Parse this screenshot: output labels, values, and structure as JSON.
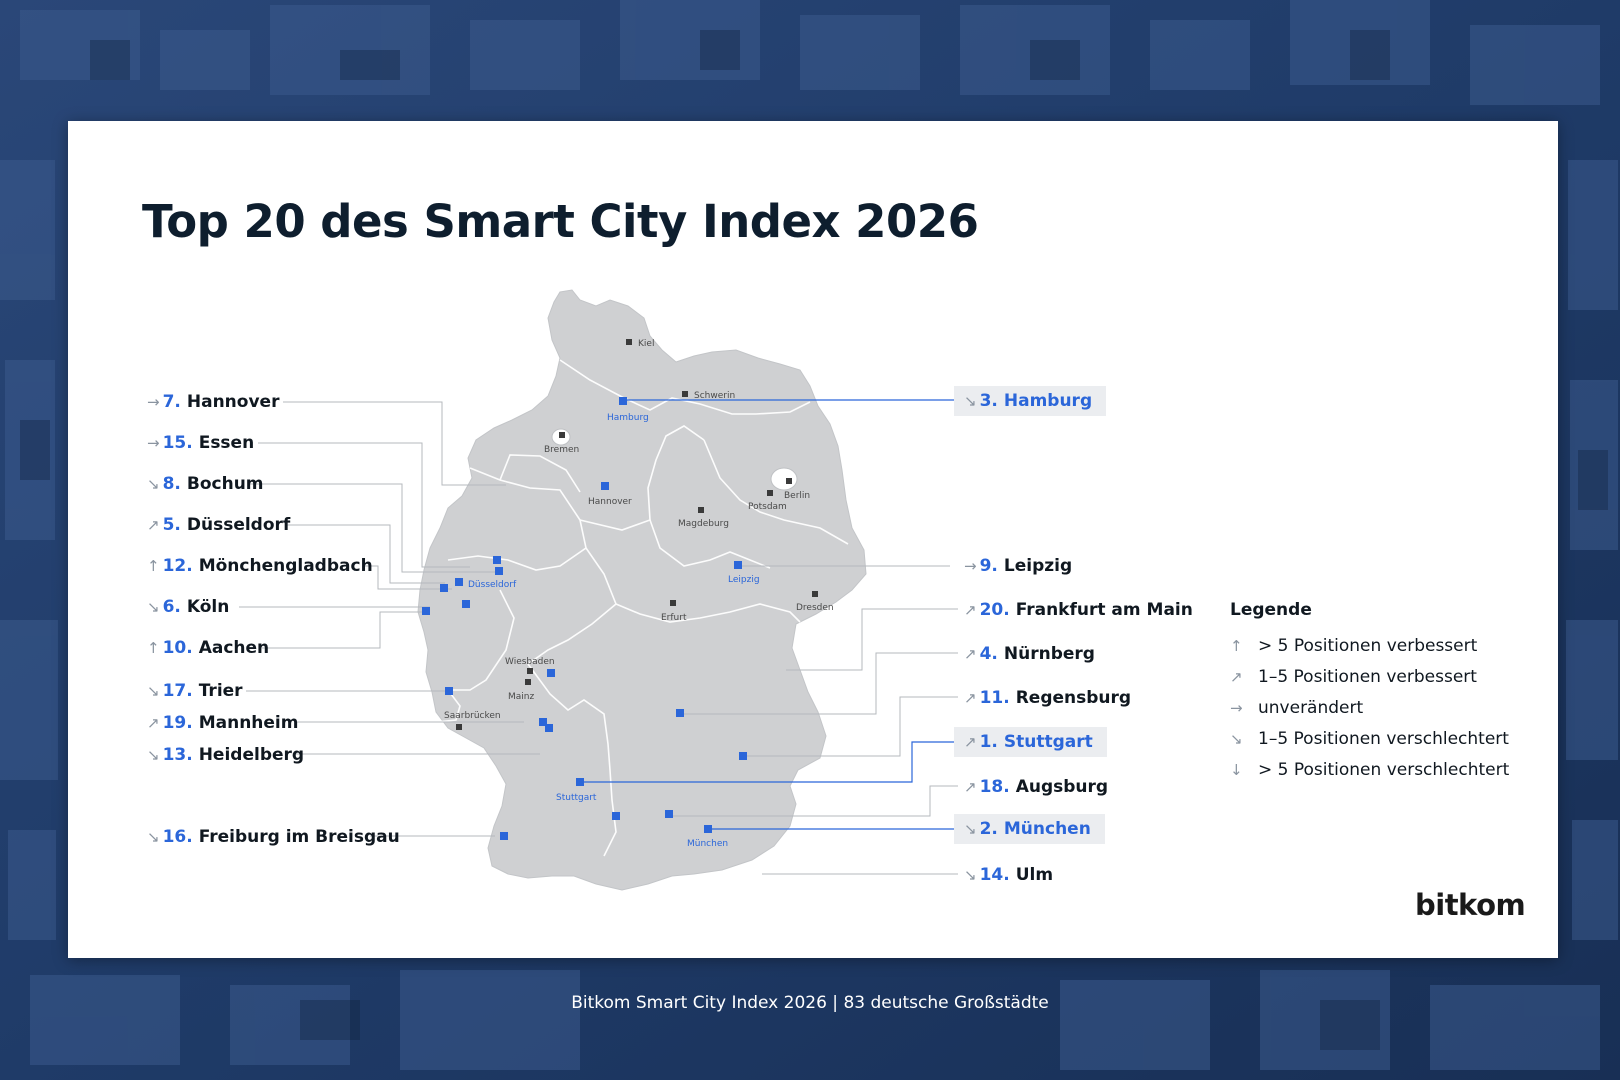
{
  "title": "Top 20 des Smart City Index 2026",
  "caption": "Bitkom Smart City Index 2026 | 83 deutsche Großstädte",
  "brand": "bitkom",
  "colors": {
    "accent_blue": "#2b66d9",
    "map_gray": "#cfd0d2",
    "highlight_bg": "#ebedf0",
    "background": "#1d3a66"
  },
  "legend": {
    "title": "Legende",
    "items": [
      {
        "icon": "arrow-up-icon",
        "symbol": "↑",
        "label": "> 5 Positionen verbessert"
      },
      {
        "icon": "arrow-up-right-icon",
        "symbol": "↗",
        "label": "1–5 Positionen verbessert"
      },
      {
        "icon": "arrow-right-icon",
        "symbol": "→",
        "label": "unverändert"
      },
      {
        "icon": "arrow-down-right-icon",
        "symbol": "↘",
        "label": "1–5 Positionen verschlechtert"
      },
      {
        "icon": "arrow-down-icon",
        "symbol": "↓",
        "label": "> 5 Positionen verschlechtert"
      }
    ]
  },
  "rankings_left": [
    {
      "rank": "7.",
      "name": "Hannover",
      "trend": "→"
    },
    {
      "rank": "15.",
      "name": "Essen",
      "trend": "→"
    },
    {
      "rank": "8.",
      "name": "Bochum",
      "trend": "↘"
    },
    {
      "rank": "5.",
      "name": "Düsseldorf",
      "trend": "↗"
    },
    {
      "rank": "12.",
      "name": "Mönchengladbach",
      "trend": "↑"
    },
    {
      "rank": "6.",
      "name": "Köln",
      "trend": "↘"
    },
    {
      "rank": "10.",
      "name": "Aachen",
      "trend": "↑"
    },
    {
      "rank": "17.",
      "name": "Trier",
      "trend": "↘"
    },
    {
      "rank": "19.",
      "name": "Mannheim",
      "trend": "↗"
    },
    {
      "rank": "13.",
      "name": "Heidelberg",
      "trend": "↘"
    },
    {
      "rank": "16.",
      "name": "Freiburg im Breisgau",
      "trend": "↘"
    }
  ],
  "rankings_right": [
    {
      "rank": "3.",
      "name": "Hamburg",
      "trend": "↘",
      "top3": true
    },
    {
      "rank": "9.",
      "name": "Leipzig",
      "trend": "→",
      "top3": false
    },
    {
      "rank": "20.",
      "name": "Frankfurt am Main",
      "trend": "↗",
      "top3": false
    },
    {
      "rank": "4.",
      "name": "Nürnberg",
      "trend": "↗",
      "top3": false
    },
    {
      "rank": "11.",
      "name": "Regensburg",
      "trend": "↗",
      "top3": false
    },
    {
      "rank": "1.",
      "name": "Stuttgart",
      "trend": "↗",
      "top3": true
    },
    {
      "rank": "18.",
      "name": "Augsburg",
      "trend": "↗",
      "top3": false
    },
    {
      "rank": "2.",
      "name": "München",
      "trend": "↘",
      "top3": true
    },
    {
      "rank": "14.",
      "name": "Ulm",
      "trend": "↘",
      "top3": false
    }
  ],
  "map_labels": {
    "capitals": [
      "Kiel",
      "Schwerin",
      "Bremen",
      "Hannover",
      "Berlin",
      "Potsdam",
      "Magdeburg",
      "Erfurt",
      "Dresden",
      "Wiesbaden",
      "Mainz",
      "Saarbrücken"
    ],
    "top3_cities": [
      "Hamburg",
      "Stuttgart",
      "München"
    ],
    "highlighted_cities": [
      "Düsseldorf",
      "Leipzig"
    ]
  }
}
